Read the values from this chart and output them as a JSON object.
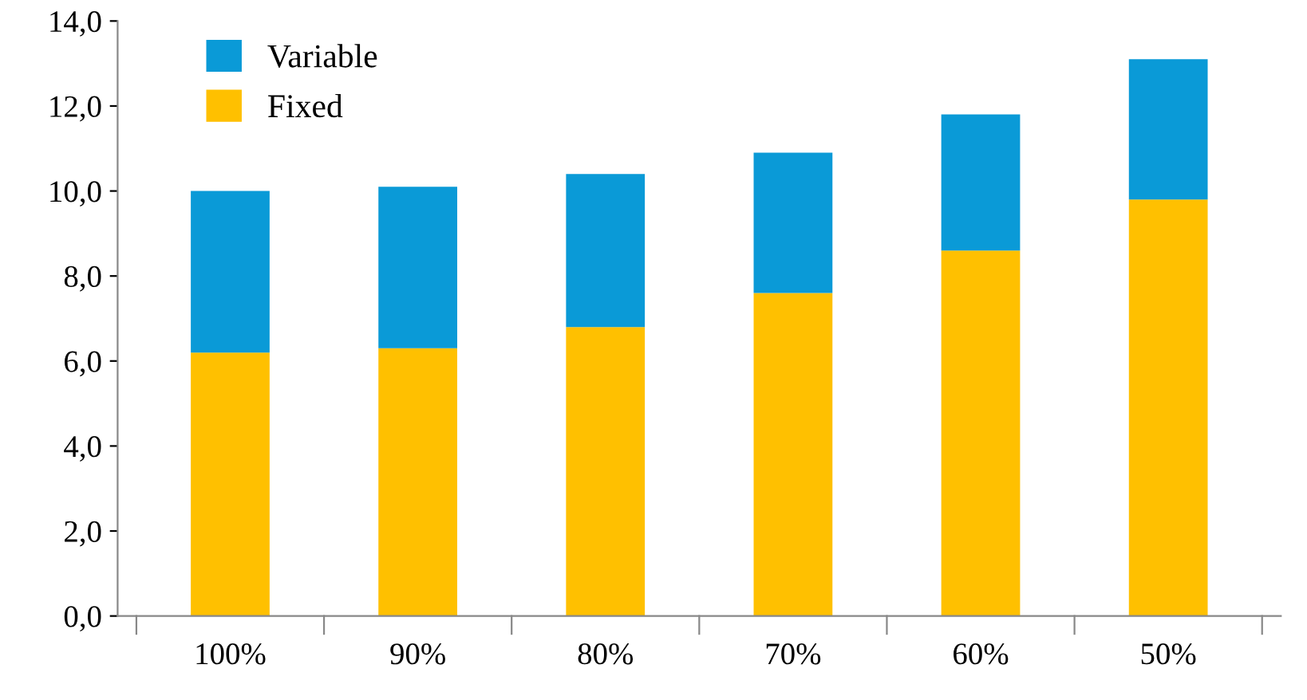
{
  "chart_data": {
    "type": "bar",
    "stacked": true,
    "categories": [
      "100%",
      "90%",
      "80%",
      "70%",
      "60%",
      "50%"
    ],
    "series": [
      {
        "name": "Fixed",
        "color": "#ffc000",
        "values": [
          6.2,
          6.3,
          6.8,
          7.6,
          8.6,
          9.8
        ]
      },
      {
        "name": "Variable",
        "color": "#0a9ad7",
        "values": [
          3.8,
          3.8,
          3.6,
          3.3,
          3.2,
          3.3
        ]
      }
    ],
    "ylim": [
      0,
      14
    ],
    "yticks": [
      {
        "value": 0,
        "label": "0,0"
      },
      {
        "value": 2,
        "label": "2,0"
      },
      {
        "value": 4,
        "label": "4,0"
      },
      {
        "value": 6,
        "label": "6,0"
      },
      {
        "value": 8,
        "label": "8,0"
      },
      {
        "value": 10,
        "label": "10,0"
      },
      {
        "value": 12,
        "label": "12,0"
      },
      {
        "value": 14,
        "label": "14,0"
      }
    ],
    "grid": false,
    "legend": "top left"
  }
}
